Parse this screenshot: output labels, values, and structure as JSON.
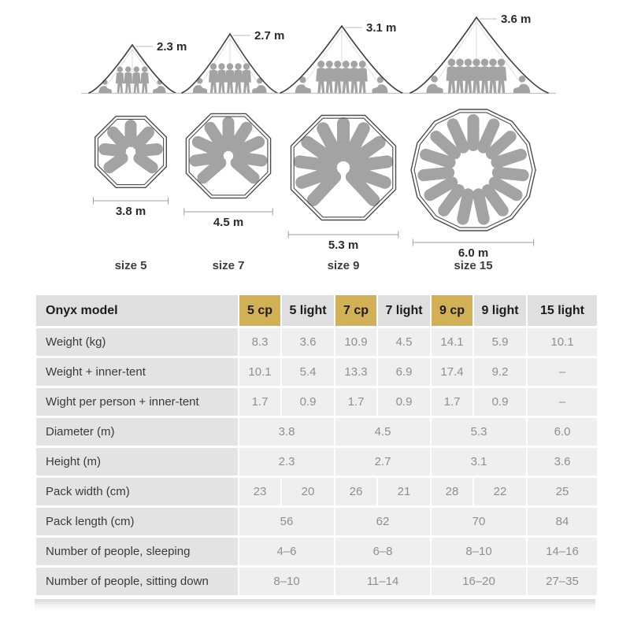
{
  "colors": {
    "highlight_gold": "#d2b055",
    "header_bg": "#dfdfdf",
    "row_label_bg": "#e3e3e3",
    "cell_bg": "#efefef",
    "value_text": "#8f8f8f",
    "silhouette_gray": "#a3a3a3"
  },
  "diagram": {
    "tents": [
      {
        "size_label": "size 5",
        "height_label": "2.3 m",
        "diameter_label": "3.8 m"
      },
      {
        "size_label": "size 7",
        "height_label": "2.7 m",
        "diameter_label": "4.5 m"
      },
      {
        "size_label": "size 9",
        "height_label": "3.1 m",
        "diameter_label": "5.3 m"
      },
      {
        "size_label": "size 15",
        "height_label": "3.6 m",
        "diameter_label": "6.0 m"
      }
    ]
  },
  "table": {
    "header": [
      {
        "label": "Onyx model",
        "highlight": false
      },
      {
        "label": "5 cp",
        "highlight": true
      },
      {
        "label": "5 light",
        "highlight": false
      },
      {
        "label": "7 cp",
        "highlight": true
      },
      {
        "label": "7 light",
        "highlight": false
      },
      {
        "label": "9 cp",
        "highlight": true
      },
      {
        "label": "9 light",
        "highlight": false
      },
      {
        "label": "15 light",
        "highlight": false
      }
    ],
    "rows": [
      {
        "label": "Weight (kg)",
        "cells": [
          {
            "v": "8.3",
            "s": 1
          },
          {
            "v": "3.6",
            "s": 1
          },
          {
            "v": "10.9",
            "s": 1
          },
          {
            "v": "4.5",
            "s": 1
          },
          {
            "v": "14.1",
            "s": 1
          },
          {
            "v": "5.9",
            "s": 1
          },
          {
            "v": "10.1",
            "s": 1
          }
        ]
      },
      {
        "label": "Weight + inner-tent",
        "cells": [
          {
            "v": "10.1",
            "s": 1
          },
          {
            "v": "5.4",
            "s": 1
          },
          {
            "v": "13.3",
            "s": 1
          },
          {
            "v": "6.9",
            "s": 1
          },
          {
            "v": "17.4",
            "s": 1
          },
          {
            "v": "9.2",
            "s": 1
          },
          {
            "v": "–",
            "s": 1
          }
        ]
      },
      {
        "label": "Wight per person + inner-tent",
        "cells": [
          {
            "v": "1.7",
            "s": 1
          },
          {
            "v": "0.9",
            "s": 1
          },
          {
            "v": "1.7",
            "s": 1
          },
          {
            "v": "0.9",
            "s": 1
          },
          {
            "v": "1.7",
            "s": 1
          },
          {
            "v": "0.9",
            "s": 1
          },
          {
            "v": "–",
            "s": 1
          }
        ]
      },
      {
        "label": "Diameter (m)",
        "cells": [
          {
            "v": "3.8",
            "s": 2
          },
          {
            "v": "4.5",
            "s": 2
          },
          {
            "v": "5.3",
            "s": 2
          },
          {
            "v": "6.0",
            "s": 1
          }
        ]
      },
      {
        "label": "Height (m)",
        "cells": [
          {
            "v": "2.3",
            "s": 2
          },
          {
            "v": "2.7",
            "s": 2
          },
          {
            "v": "3.1",
            "s": 2
          },
          {
            "v": "3.6",
            "s": 1
          }
        ]
      },
      {
        "label": "Pack width (cm)",
        "cells": [
          {
            "v": "23",
            "s": 1
          },
          {
            "v": "20",
            "s": 1
          },
          {
            "v": "26",
            "s": 1
          },
          {
            "v": "21",
            "s": 1
          },
          {
            "v": "28",
            "s": 1
          },
          {
            "v": "22",
            "s": 1
          },
          {
            "v": "25",
            "s": 1
          }
        ]
      },
      {
        "label": "Pack length (cm)",
        "cells": [
          {
            "v": "56",
            "s": 2
          },
          {
            "v": "62",
            "s": 2
          },
          {
            "v": "70",
            "s": 2
          },
          {
            "v": "84",
            "s": 1
          }
        ]
      },
      {
        "label": "Number of people, sleeping",
        "cells": [
          {
            "v": "4–6",
            "s": 2
          },
          {
            "v": "6–8",
            "s": 2
          },
          {
            "v": "8–10",
            "s": 2
          },
          {
            "v": "14–16",
            "s": 1
          }
        ]
      },
      {
        "label": "Number of people, sitting down",
        "cells": [
          {
            "v": "8–10",
            "s": 2
          },
          {
            "v": "11–14",
            "s": 2
          },
          {
            "v": "16–20",
            "s": 2
          },
          {
            "v": "27–35",
            "s": 1
          }
        ]
      }
    ]
  }
}
